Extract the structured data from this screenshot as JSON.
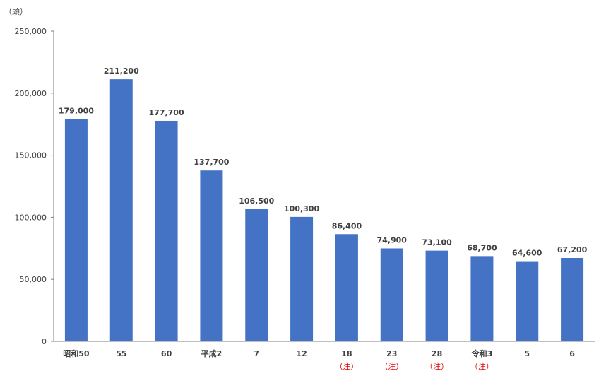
{
  "chart_data": {
    "type": "bar",
    "unit_label": "（頭）",
    "categories": [
      "昭和50",
      "55",
      "60",
      "平成2",
      "7",
      "12",
      "18",
      "23",
      "28",
      "令和3",
      "5",
      "6"
    ],
    "notes": [
      "",
      "",
      "",
      "",
      "",
      "",
      "（注）",
      "（注）",
      "（注）",
      "（注）",
      "",
      ""
    ],
    "values": [
      179000,
      211200,
      177700,
      137700,
      106500,
      100300,
      86400,
      74900,
      73100,
      68700,
      64600,
      67200
    ],
    "value_labels": [
      "179,000",
      "211,200",
      "177,700",
      "137,700",
      "106,500",
      "100,300",
      "86,400",
      "74,900",
      "73,100",
      "68,700",
      "64,600",
      "67,200"
    ],
    "y_ticks": [
      0,
      50000,
      100000,
      150000,
      200000,
      250000
    ],
    "y_tick_labels": [
      "0",
      "50,000",
      "100,000",
      "150,000",
      "200,000",
      "250,000"
    ],
    "ylim": [
      0,
      250000
    ],
    "bar_color": "#4472c4",
    "grid": false,
    "legend": "none"
  }
}
